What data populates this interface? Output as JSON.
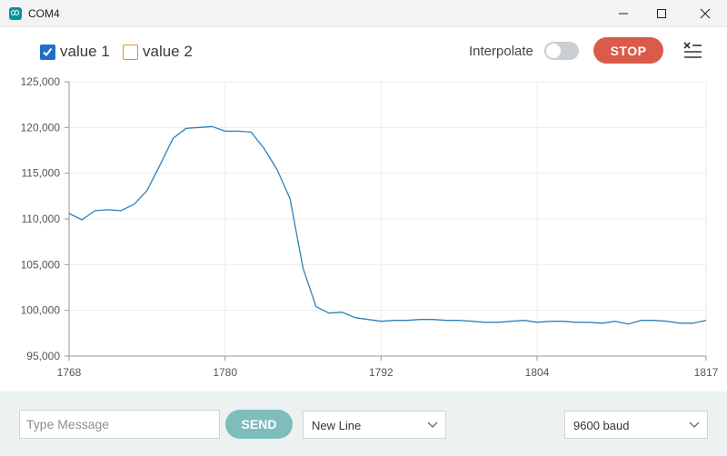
{
  "window": {
    "title": "COM4"
  },
  "toolbar": {
    "series": [
      {
        "label": "value 1",
        "checked": true,
        "color": "#1f6fc6"
      },
      {
        "label": "value 2",
        "checked": false,
        "color": "#e0912d"
      }
    ],
    "interpolate_label": "Interpolate",
    "interpolate_on": false,
    "stop_label": "STOP"
  },
  "footer": {
    "message_placeholder": "Type Message",
    "send_label": "SEND",
    "line_ending": "New Line",
    "baud": "9600 baud"
  },
  "chart_data": {
    "type": "line",
    "xlim": [
      1768,
      1817
    ],
    "ylim": [
      95000,
      125000
    ],
    "x_ticks": [
      1768,
      1780,
      1792,
      1804,
      1817
    ],
    "y_ticks": [
      95000,
      100000,
      105000,
      110000,
      115000,
      120000,
      125000
    ],
    "y_tick_labels": [
      "95,000",
      "100,000",
      "105,000",
      "110,000",
      "115,000",
      "120,000",
      "125,000"
    ],
    "grid": true,
    "series": [
      {
        "name": "value 1",
        "color": "#2f7fb8",
        "x": [
          1768,
          1769,
          1770,
          1771,
          1772,
          1773,
          1774,
          1775,
          1776,
          1777,
          1778,
          1779,
          1780,
          1781,
          1782,
          1783,
          1784,
          1785,
          1786,
          1787,
          1788,
          1789,
          1790,
          1791,
          1792,
          1793,
          1794,
          1795,
          1796,
          1797,
          1798,
          1799,
          1800,
          1801,
          1802,
          1803,
          1804,
          1805,
          1806,
          1807,
          1808,
          1809,
          1810,
          1811,
          1812,
          1813,
          1814,
          1815,
          1816,
          1817
        ],
        "values": [
          110600,
          109900,
          110900,
          111000,
          110900,
          111600,
          113100,
          115900,
          118800,
          119900,
          120000,
          120100,
          119600,
          119600,
          119500,
          117700,
          115400,
          112200,
          104600,
          100400,
          99700,
          99800,
          99200,
          99000,
          98800,
          98900,
          98900,
          99000,
          99000,
          98900,
          98900,
          98800,
          98700,
          98700,
          98800,
          98900,
          98700,
          98800,
          98800,
          98700,
          98700,
          98600,
          98800,
          98500,
          98900,
          98900,
          98800,
          98600,
          98600,
          98900
        ]
      }
    ]
  }
}
